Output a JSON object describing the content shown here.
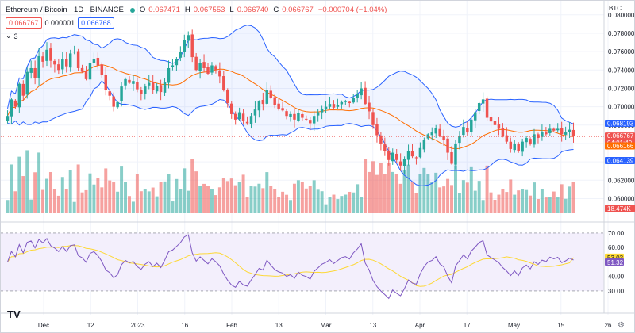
{
  "symbol": {
    "title": "Ethereum / Bitcoin · 1D · BINANCE",
    "open_label": "O",
    "open": "0.067471",
    "high_label": "H",
    "high": "0.067553",
    "low_label": "L",
    "low": "0.066740",
    "close_label": "C",
    "close": "0.066767",
    "change": "−0.000704 (−1.04%)",
    "sell_price": "0.066767",
    "spread": "0.000001",
    "buy_price": "0.066768",
    "indicators_count": "3"
  },
  "currency": "BTC",
  "colors": {
    "up": "#26a69a",
    "down": "#ef5350",
    "band": "#2962ff",
    "basis": "#ff6d00",
    "rsi": "#7e57c2",
    "rsi_ma": "#fdd835",
    "rsi_bg": "#f3effc"
  },
  "price_axis": {
    "ticks": [
      "0.080000",
      "0.078000",
      "0.076000",
      "0.074000",
      "0.072000",
      "0.070000",
      "0.068000",
      "0.066000",
      "0.064000",
      "0.062000",
      "0.060000"
    ],
    "badges": {
      "upper_band": "0.068193",
      "last_price": "0.066767",
      "countdown": "04:01:40",
      "basis": "0.066166",
      "lower_band": "0.064139",
      "volume": "18.474K"
    }
  },
  "rsi_axis": {
    "ticks": [
      "70.00",
      "60.00",
      "50.00",
      "40.00",
      "30.00"
    ],
    "badges": {
      "rsi_ma": "53.03",
      "rsi": "51.32"
    }
  },
  "time_axis": [
    "Dec",
    "12",
    "2023",
    "16",
    "Feb",
    "13",
    "Mar",
    "13",
    "Apr",
    "17",
    "May",
    "15",
    "26"
  ],
  "logo_text": "TV",
  "settings_icon": "gear-icon",
  "chart_data": {
    "type": "candlestick",
    "title": "Ethereum / Bitcoin · 1D · BINANCE",
    "ylim": [
      0.0584,
      0.0805
    ],
    "rsi_ylim": [
      19,
      76
    ],
    "rsi_bands": [
      30,
      50,
      70
    ],
    "last_close": 0.066767,
    "bollinger_last": {
      "upper": 0.068193,
      "basis": 0.066166,
      "lower": 0.064139
    },
    "rsi_last": 51.32,
    "rsi_ma_last": 53.03,
    "closes": [
      0.069,
      0.0708,
      0.07,
      0.0725,
      0.0712,
      0.0738,
      0.0742,
      0.0731,
      0.0755,
      0.0749,
      0.0762,
      0.075,
      0.0746,
      0.074,
      0.0752,
      0.0744,
      0.0758,
      0.076,
      0.0742,
      0.0738,
      0.073,
      0.0748,
      0.0752,
      0.0745,
      0.0735,
      0.0718,
      0.0712,
      0.07,
      0.0705,
      0.0722,
      0.073,
      0.0726,
      0.0728,
      0.0719,
      0.0714,
      0.0722,
      0.0726,
      0.0718,
      0.0723,
      0.0716,
      0.0727,
      0.0742,
      0.0745,
      0.0752,
      0.076,
      0.0773,
      0.0778,
      0.0754,
      0.074,
      0.0748,
      0.0742,
      0.0736,
      0.0745,
      0.074,
      0.0733,
      0.0718,
      0.0704,
      0.0692,
      0.0686,
      0.0694,
      0.0685,
      0.0682,
      0.069,
      0.0697,
      0.0706,
      0.0703,
      0.0718,
      0.071,
      0.0702,
      0.0698,
      0.0696,
      0.069,
      0.0692,
      0.0686,
      0.0693,
      0.0688,
      0.0686,
      0.0682,
      0.069,
      0.0694,
      0.0698,
      0.07,
      0.0703,
      0.0699,
      0.0702,
      0.0705,
      0.0706,
      0.0704,
      0.071,
      0.0714,
      0.072,
      0.0703,
      0.0695,
      0.068,
      0.0669,
      0.066,
      0.0652,
      0.0642,
      0.065,
      0.0642,
      0.0636,
      0.0643,
      0.0652,
      0.0646,
      0.0644,
      0.0655,
      0.0664,
      0.067,
      0.0672,
      0.0677,
      0.0668,
      0.0664,
      0.065,
      0.0638,
      0.066,
      0.0668,
      0.0678,
      0.0672,
      0.0686,
      0.0694,
      0.0704,
      0.0708,
      0.0688,
      0.0684,
      0.068,
      0.0676,
      0.0668,
      0.0662,
      0.0654,
      0.066,
      0.0652,
      0.0662,
      0.0666,
      0.066,
      0.067,
      0.0666,
      0.0672,
      0.067,
      0.0676,
      0.0674,
      0.0676,
      0.067,
      0.0672,
      0.0675,
      0.06677
    ]
  }
}
